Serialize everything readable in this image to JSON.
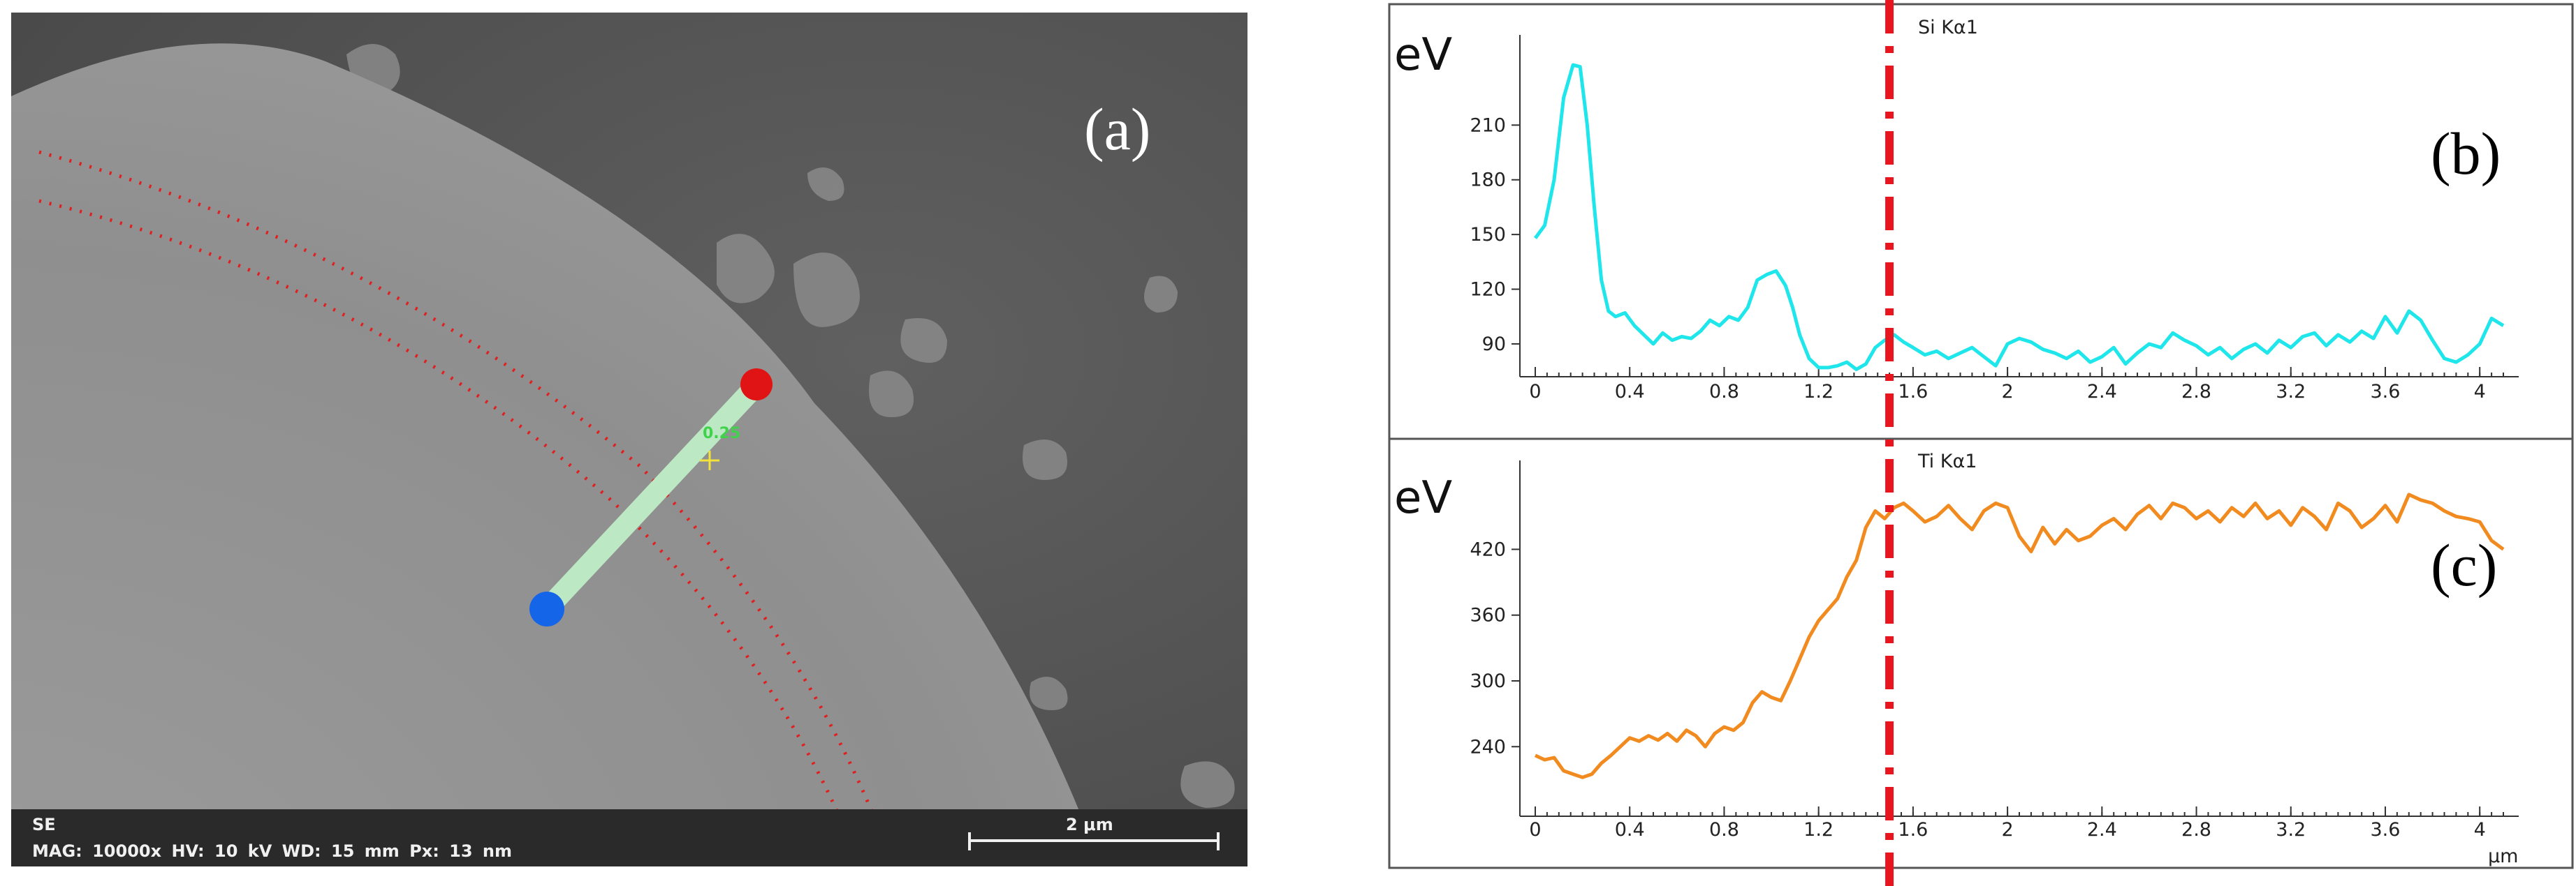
{
  "panel_labels": {
    "a": "(a)",
    "b": "(b)",
    "c": "(c)"
  },
  "sem": {
    "mode": "SE",
    "mag": "MAG: 10000x",
    "hv": "HV: 10 kV",
    "wd": "WD: 15 mm",
    "px": "Px: 13 nm",
    "scale_label": "2 μm",
    "linescan_label": "0.25"
  },
  "chart_data": [
    {
      "type": "line",
      "series_name": "Si Kα1",
      "unit": "eV",
      "xlim": [
        0,
        4.1
      ],
      "ylim": [
        72,
        248
      ],
      "x_ticks": [
        "0",
        "0.4",
        "0.8",
        "1.2",
        "1.6",
        "2",
        "2.4",
        "2.8",
        "3.2",
        "3.6",
        "4"
      ],
      "y_ticks": [
        90,
        120,
        150,
        180,
        210
      ],
      "interface_x": 1.5,
      "color": "#1ee6ea",
      "x": [
        0,
        0.04,
        0.08,
        0.12,
        0.16,
        0.19,
        0.22,
        0.25,
        0.28,
        0.31,
        0.34,
        0.38,
        0.42,
        0.46,
        0.5,
        0.54,
        0.58,
        0.62,
        0.66,
        0.7,
        0.74,
        0.78,
        0.82,
        0.86,
        0.9,
        0.94,
        0.98,
        1.02,
        1.06,
        1.09,
        1.12,
        1.16,
        1.2,
        1.24,
        1.28,
        1.32,
        1.36,
        1.4,
        1.44,
        1.48,
        1.52,
        1.56,
        1.6,
        1.65,
        1.7,
        1.75,
        1.8,
        1.85,
        1.9,
        1.95,
        2.0,
        2.05,
        2.1,
        2.15,
        2.2,
        2.25,
        2.3,
        2.35,
        2.4,
        2.45,
        2.5,
        2.55,
        2.6,
        2.65,
        2.7,
        2.75,
        2.8,
        2.85,
        2.9,
        2.95,
        3.0,
        3.05,
        3.1,
        3.15,
        3.2,
        3.25,
        3.3,
        3.35,
        3.4,
        3.45,
        3.5,
        3.55,
        3.6,
        3.65,
        3.7,
        3.75,
        3.8,
        3.85,
        3.9,
        3.95,
        4.0,
        4.05,
        4.1
      ],
      "y": [
        148,
        155,
        180,
        225,
        243,
        242,
        210,
        165,
        125,
        108,
        105,
        107,
        100,
        95,
        90,
        96,
        92,
        94,
        93,
        97,
        103,
        100,
        105,
        103,
        110,
        125,
        128,
        130,
        122,
        110,
        95,
        82,
        77,
        77,
        78,
        80,
        76,
        79,
        88,
        92,
        95,
        91,
        88,
        84,
        86,
        82,
        85,
        88,
        83,
        78,
        90,
        93,
        91,
        87,
        85,
        82,
        86,
        80,
        83,
        88,
        79,
        85,
        90,
        88,
        96,
        92,
        89,
        84,
        88,
        82,
        87,
        90,
        85,
        92,
        88,
        94,
        96,
        89,
        95,
        91,
        97,
        93,
        105,
        96,
        108,
        103,
        92,
        82,
        80,
        84,
        90,
        104,
        100
      ]
    },
    {
      "type": "line",
      "series_name": "Ti Kα1",
      "unit": "eV",
      "x_unit": "μm",
      "xlim": [
        0,
        4.1
      ],
      "ylim": [
        202,
        482
      ],
      "x_ticks": [
        "0",
        "0.4",
        "0.8",
        "1.2",
        "1.6",
        "2",
        "2.4",
        "2.8",
        "3.2",
        "3.6",
        "4"
      ],
      "y_ticks": [
        240,
        300,
        360,
        420
      ],
      "interface_x": 1.5,
      "color": "#f28b1f",
      "x": [
        0,
        0.04,
        0.08,
        0.12,
        0.16,
        0.2,
        0.24,
        0.28,
        0.32,
        0.36,
        0.4,
        0.44,
        0.48,
        0.52,
        0.56,
        0.6,
        0.64,
        0.68,
        0.72,
        0.76,
        0.8,
        0.84,
        0.88,
        0.92,
        0.96,
        1.0,
        1.04,
        1.08,
        1.12,
        1.16,
        1.2,
        1.24,
        1.28,
        1.32,
        1.36,
        1.4,
        1.44,
        1.48,
        1.52,
        1.56,
        1.6,
        1.65,
        1.7,
        1.75,
        1.8,
        1.85,
        1.9,
        1.95,
        2.0,
        2.05,
        2.1,
        2.15,
        2.2,
        2.25,
        2.3,
        2.35,
        2.4,
        2.45,
        2.5,
        2.55,
        2.6,
        2.65,
        2.7,
        2.75,
        2.8,
        2.85,
        2.9,
        2.95,
        3.0,
        3.05,
        3.1,
        3.15,
        3.2,
        3.25,
        3.3,
        3.35,
        3.4,
        3.45,
        3.5,
        3.55,
        3.6,
        3.65,
        3.7,
        3.75,
        3.8,
        3.85,
        3.9,
        3.95,
        4.0,
        4.05,
        4.1
      ],
      "y": [
        232,
        228,
        230,
        218,
        215,
        212,
        215,
        225,
        232,
        240,
        248,
        245,
        250,
        246,
        252,
        245,
        255,
        250,
        240,
        252,
        258,
        255,
        262,
        280,
        290,
        285,
        282,
        300,
        320,
        340,
        355,
        365,
        375,
        395,
        410,
        440,
        455,
        448,
        458,
        462,
        455,
        445,
        450,
        460,
        448,
        438,
        455,
        462,
        458,
        432,
        418,
        440,
        425,
        438,
        428,
        432,
        442,
        448,
        438,
        452,
        460,
        448,
        462,
        458,
        448,
        455,
        445,
        458,
        450,
        462,
        448,
        455,
        442,
        458,
        450,
        438,
        462,
        455,
        440,
        448,
        460,
        445,
        470,
        465,
        462,
        455,
        450,
        448,
        445,
        428,
        420
      ]
    }
  ]
}
